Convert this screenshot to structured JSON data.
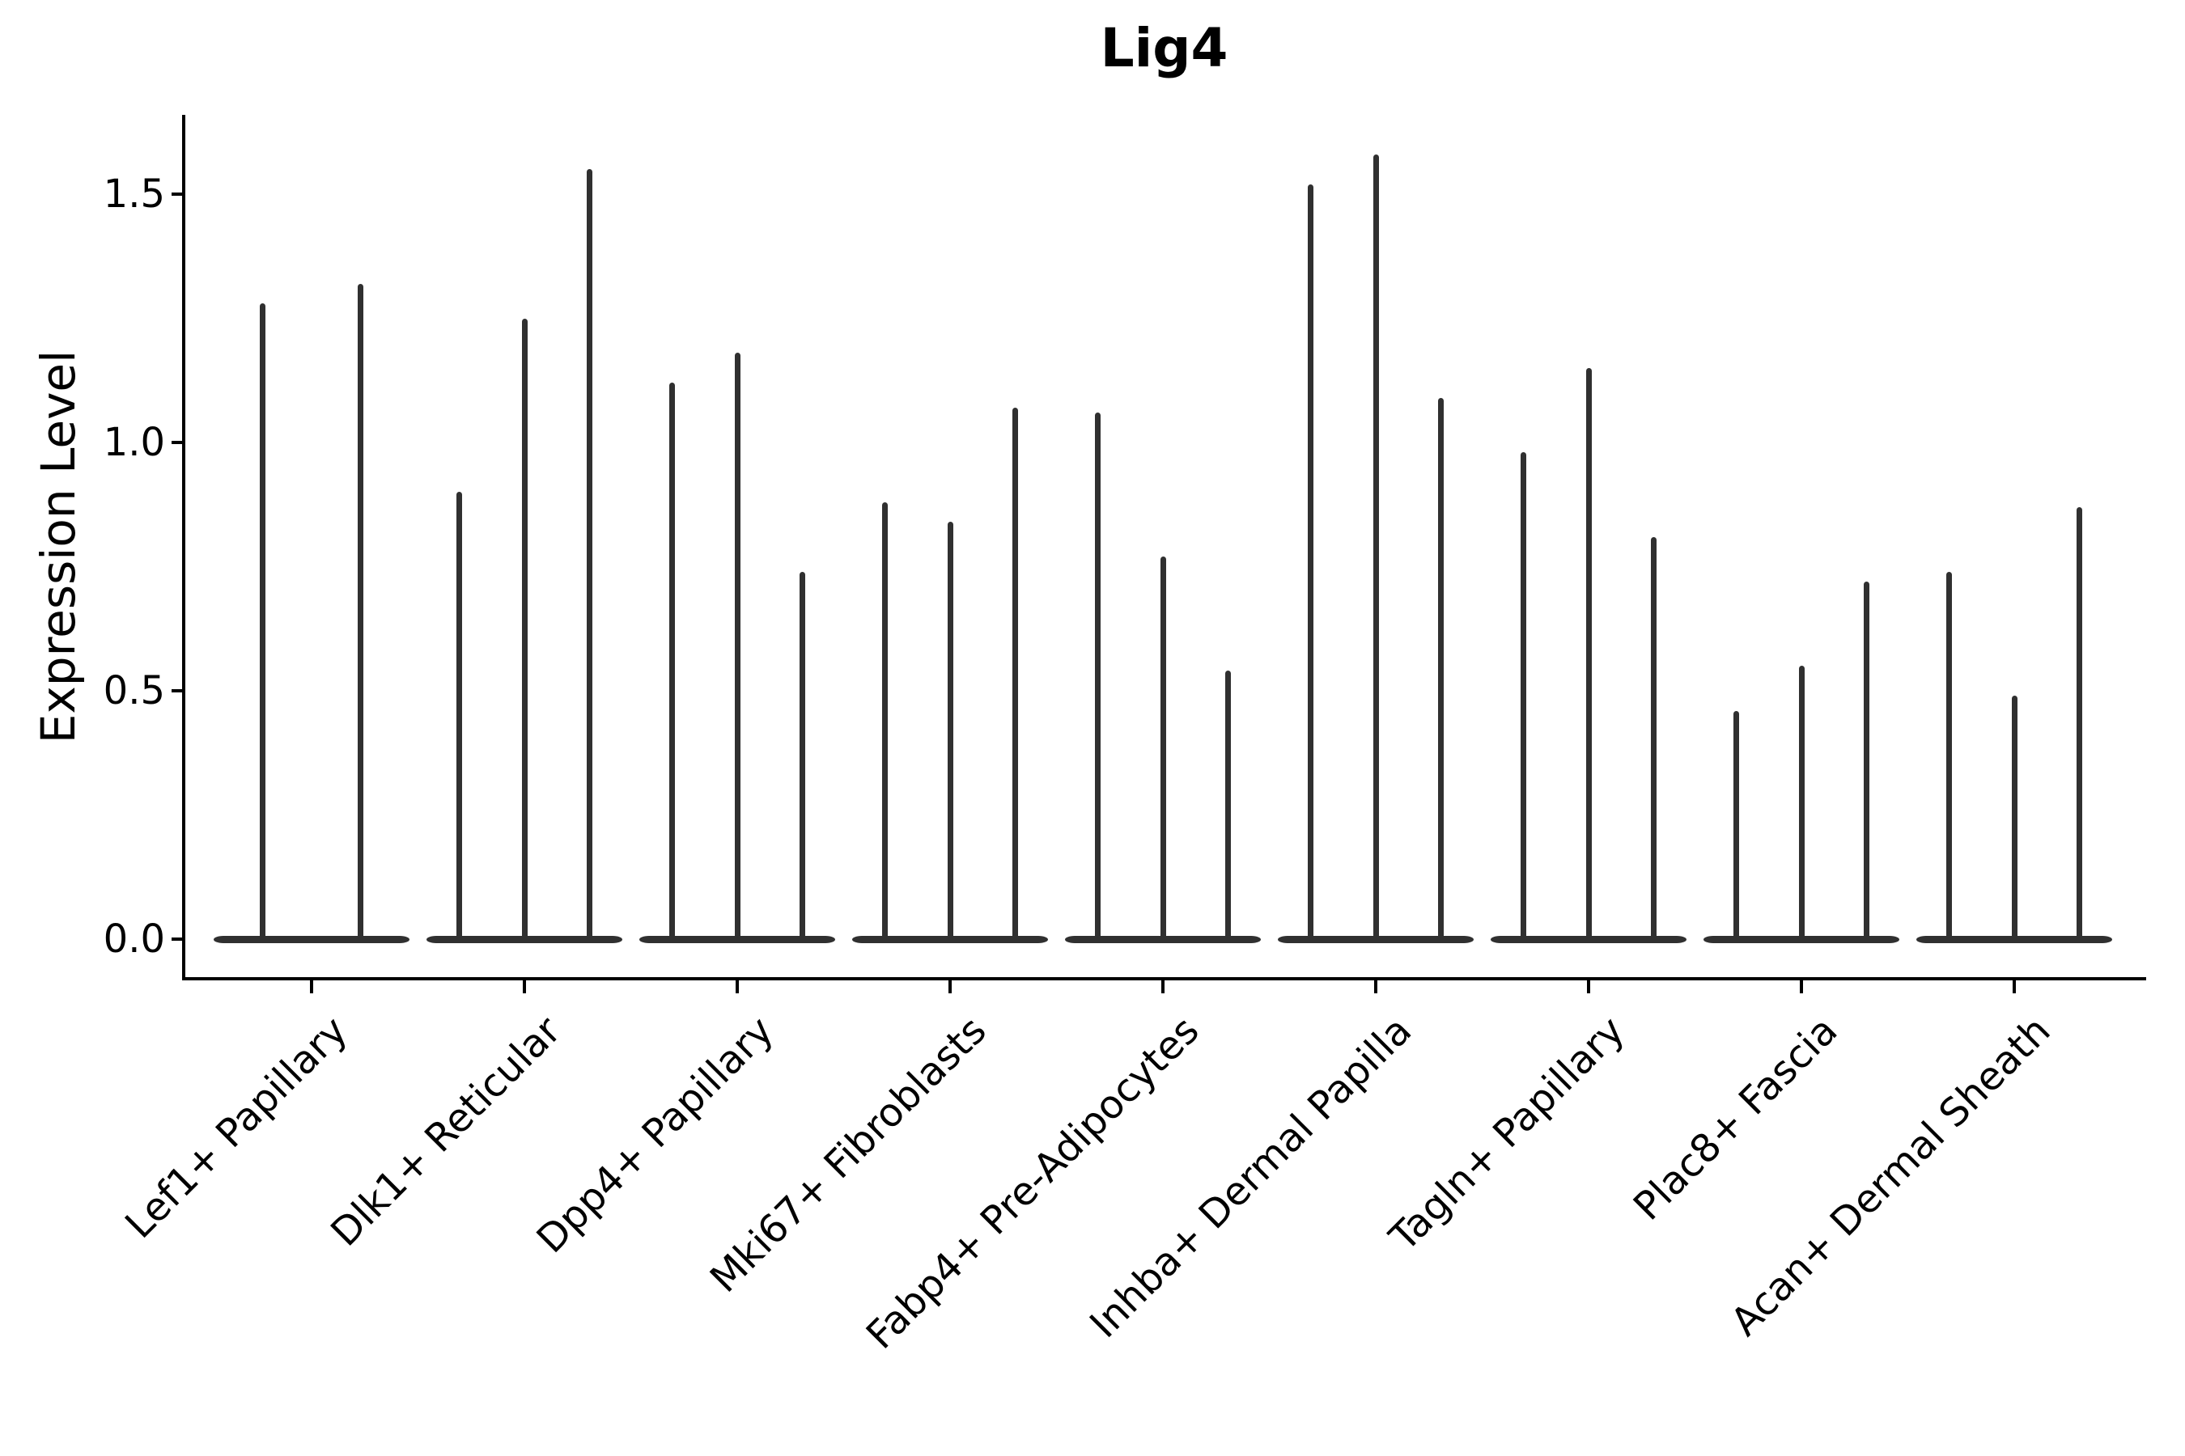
{
  "chart_data": {
    "type": "violin",
    "title": "Lig4",
    "ylabel": "Expression Level",
    "xlabel": "",
    "legend_position": "none",
    "grid": false,
    "violin_color": "#303030",
    "axis_color": "#000000",
    "background_color": "#ffffff",
    "ylim": [
      -0.08,
      1.66
    ],
    "yticks": [
      {
        "label": "1.5",
        "value": 1.5
      },
      {
        "label": "1.0",
        "value": 1.0
      },
      {
        "label": "0.5",
        "value": 0.5
      },
      {
        "label": "0.0",
        "value": 0.0
      }
    ],
    "baseline_value": 0.0,
    "categories": [
      "Lef1+ Papillary",
      "Dlk1+ Reticular",
      "Dpp4+ Papillary",
      "Mki67+ Fibroblasts",
      "Fabp4+ Pre-Adipocytes",
      "Inhba+ Dermal Papilla",
      "Tagln+ Papillary",
      "Plac8+ Fascia",
      "Acan+ Dermal Sheath"
    ],
    "series": [
      {
        "category": "Lef1+ Papillary",
        "violin_maxima": [
          1.28,
          1.32
        ]
      },
      {
        "category": "Dlk1+ Reticular",
        "violin_maxima": [
          0.9,
          1.25,
          1.55
        ]
      },
      {
        "category": "Dpp4+ Papillary",
        "violin_maxima": [
          1.12,
          1.18,
          0.74
        ]
      },
      {
        "category": "Mki67+ Fibroblasts",
        "violin_maxima": [
          0.88,
          0.84,
          1.07
        ]
      },
      {
        "category": "Fabp4+ Pre-Adipocytes",
        "violin_maxima": [
          1.06,
          0.77,
          0.54
        ]
      },
      {
        "category": "Inhba+ Dermal Papilla",
        "violin_maxima": [
          1.52,
          1.58,
          1.09
        ]
      },
      {
        "category": "Tagln+ Papillary",
        "violin_maxima": [
          0.98,
          1.15,
          0.81
        ]
      },
      {
        "category": "Plac8+ Fascia",
        "violin_maxima": [
          0.46,
          0.55,
          0.72
        ]
      },
      {
        "category": "Acan+ Dermal Sheath",
        "violin_maxima": [
          0.74,
          0.49,
          0.87
        ]
      }
    ]
  }
}
